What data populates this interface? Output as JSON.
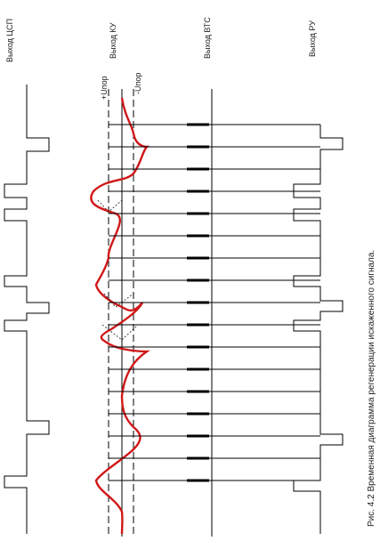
{
  "labels": {
    "csp": "Выход ЦСП",
    "ku": "Выход КУ",
    "vts": "Выход ВТС",
    "ru": "Выход РУ",
    "plus": "+Uпор",
    "minus": "-Uпор"
  },
  "caption": "Рис. 4.2  Временная диаграмма регенерации искаженного сигнала."
}
